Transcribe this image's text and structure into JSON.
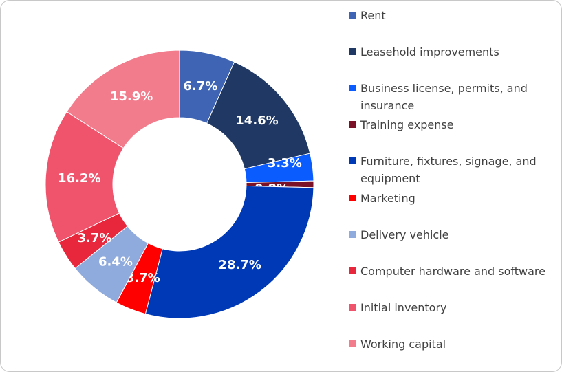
{
  "chart_data": {
    "type": "pie",
    "donut": true,
    "categories": [
      "Rent",
      "Leasehold improvements",
      "Business license, permits, and insurance",
      "Training expense",
      "Furniture, fixtures, signage, and equipment",
      "Marketing",
      "Delivery vehicle",
      "Computer hardware and software",
      "Initial inventory",
      "Working capital"
    ],
    "values": [
      6.7,
      14.6,
      3.3,
      0.8,
      28.7,
      3.7,
      6.4,
      3.7,
      16.2,
      15.9
    ],
    "data_labels": [
      "6.7%",
      "14.6%",
      "3.3%",
      "0.8%",
      "28.7%",
      "3.7%",
      "6.4%",
      "3.7%",
      "16.2%",
      "15.9%"
    ],
    "colors": [
      "#3e64b3",
      "#1f3864",
      "#0a5cff",
      "#7a1126",
      "#0039b6",
      "#ff0000",
      "#8faadc",
      "#e8273c",
      "#f0546d",
      "#f27b8c"
    ],
    "legend_position": "right"
  }
}
